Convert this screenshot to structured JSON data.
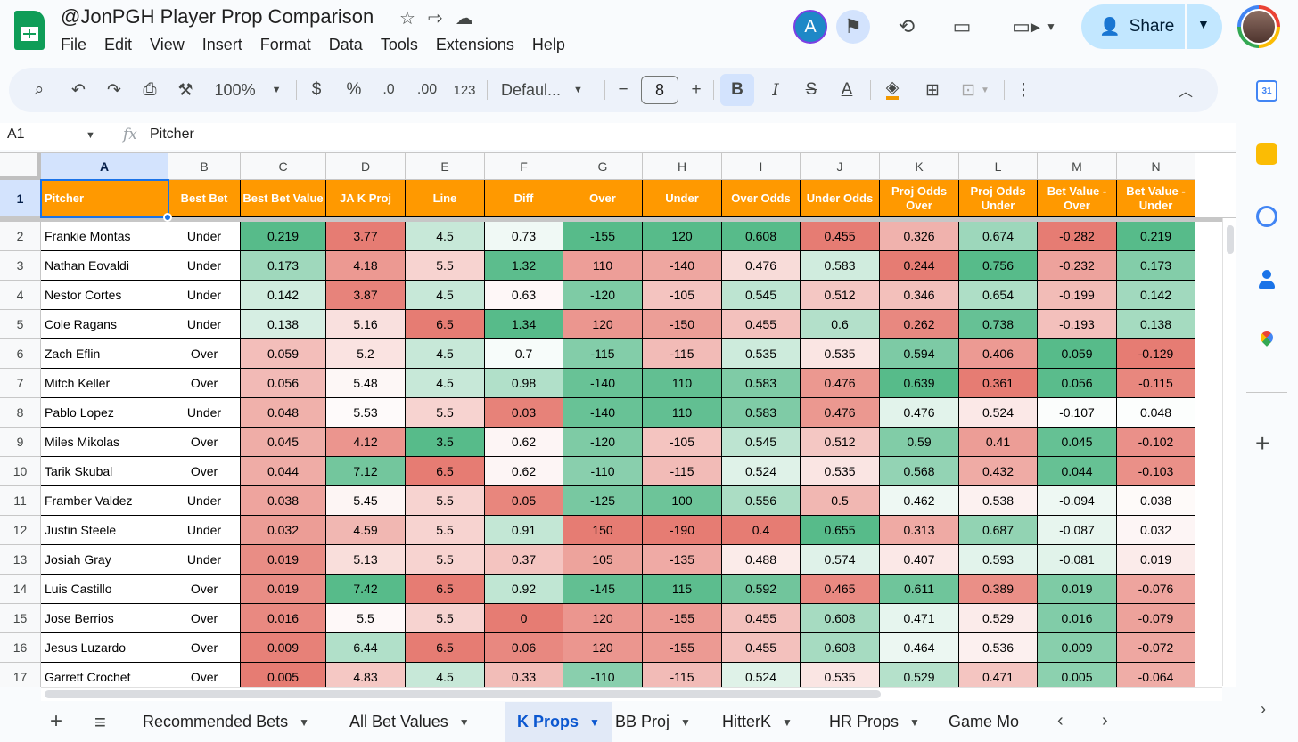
{
  "doc": {
    "title": "@JonPGH Player Prop Comparison"
  },
  "menu": [
    "File",
    "Edit",
    "View",
    "Insert",
    "Format",
    "Data",
    "Tools",
    "Extensions",
    "Help"
  ],
  "header": {
    "avatar_letter": "A",
    "share_label": "Share"
  },
  "toolbar": {
    "zoom": "100%",
    "currency": "$",
    "percent": "%",
    "dec_decrease": ".0",
    "dec_increase": ".00",
    "number_format": "123",
    "font": "Defaul...",
    "font_size": "8",
    "bold": "B",
    "italic": "I",
    "text_color": "A"
  },
  "formula_bar": {
    "cell_ref": "A1",
    "fx": "fx",
    "value": "Pitcher"
  },
  "columns": [
    "A",
    "B",
    "C",
    "D",
    "E",
    "F",
    "G",
    "H",
    "I",
    "J",
    "K",
    "L",
    "M",
    "N"
  ],
  "row_numbers": [
    "1",
    "2",
    "3",
    "4",
    "5",
    "6",
    "7",
    "8",
    "9",
    "10",
    "11",
    "12",
    "13",
    "14",
    "15",
    "16",
    "17"
  ],
  "sheet": {
    "headers": [
      "Pitcher",
      "Best Bet",
      "Best Bet Value",
      "JA K Proj",
      "Line",
      "Diff",
      "Over",
      "Under",
      "Over Odds",
      "Under Odds",
      "Proj Odds Over",
      "Proj Odds Under",
      "Bet Value - Over",
      "Bet Value - Under"
    ],
    "rows": [
      [
        "Frankie Montas",
        "Under",
        "0.219",
        "3.77",
        "4.5",
        "0.73",
        "-155",
        "120",
        "0.608",
        "0.455",
        "0.326",
        "0.674",
        "-0.282",
        "0.219"
      ],
      [
        "Nathan Eovaldi",
        "Under",
        "0.173",
        "4.18",
        "5.5",
        "1.32",
        "110",
        "-140",
        "0.476",
        "0.583",
        "0.244",
        "0.756",
        "-0.232",
        "0.173"
      ],
      [
        "Nestor Cortes",
        "Under",
        "0.142",
        "3.87",
        "4.5",
        "0.63",
        "-120",
        "-105",
        "0.545",
        "0.512",
        "0.346",
        "0.654",
        "-0.199",
        "0.142"
      ],
      [
        "Cole Ragans",
        "Under",
        "0.138",
        "5.16",
        "6.5",
        "1.34",
        "120",
        "-150",
        "0.455",
        "0.6",
        "0.262",
        "0.738",
        "-0.193",
        "0.138"
      ],
      [
        "Zach Eflin",
        "Over",
        "0.059",
        "5.2",
        "4.5",
        "0.7",
        "-115",
        "-115",
        "0.535",
        "0.535",
        "0.594",
        "0.406",
        "0.059",
        "-0.129"
      ],
      [
        "Mitch Keller",
        "Over",
        "0.056",
        "5.48",
        "4.5",
        "0.98",
        "-140",
        "110",
        "0.583",
        "0.476",
        "0.639",
        "0.361",
        "0.056",
        "-0.115"
      ],
      [
        "Pablo Lopez",
        "Under",
        "0.048",
        "5.53",
        "5.5",
        "0.03",
        "-140",
        "110",
        "0.583",
        "0.476",
        "0.476",
        "0.524",
        "-0.107",
        "0.048"
      ],
      [
        "Miles Mikolas",
        "Over",
        "0.045",
        "4.12",
        "3.5",
        "0.62",
        "-120",
        "-105",
        "0.545",
        "0.512",
        "0.59",
        "0.41",
        "0.045",
        "-0.102"
      ],
      [
        "Tarik Skubal",
        "Over",
        "0.044",
        "7.12",
        "6.5",
        "0.62",
        "-110",
        "-115",
        "0.524",
        "0.535",
        "0.568",
        "0.432",
        "0.044",
        "-0.103"
      ],
      [
        "Framber Valdez",
        "Under",
        "0.038",
        "5.45",
        "5.5",
        "0.05",
        "-125",
        "100",
        "0.556",
        "0.5",
        "0.462",
        "0.538",
        "-0.094",
        "0.038"
      ],
      [
        "Justin Steele",
        "Under",
        "0.032",
        "4.59",
        "5.5",
        "0.91",
        "150",
        "-190",
        "0.4",
        "0.655",
        "0.313",
        "0.687",
        "-0.087",
        "0.032"
      ],
      [
        "Josiah Gray",
        "Under",
        "0.019",
        "5.13",
        "5.5",
        "0.37",
        "105",
        "-135",
        "0.488",
        "0.574",
        "0.407",
        "0.593",
        "-0.081",
        "0.019"
      ],
      [
        "Luis Castillo",
        "Over",
        "0.019",
        "7.42",
        "6.5",
        "0.92",
        "-145",
        "115",
        "0.592",
        "0.465",
        "0.611",
        "0.389",
        "0.019",
        "-0.076"
      ],
      [
        "Jose Berrios",
        "Over",
        "0.016",
        "5.5",
        "5.5",
        "0",
        "120",
        "-155",
        "0.455",
        "0.608",
        "0.471",
        "0.529",
        "0.016",
        "-0.079"
      ],
      [
        "Jesus Luzardo",
        "Over",
        "0.009",
        "6.44",
        "6.5",
        "0.06",
        "120",
        "-155",
        "0.455",
        "0.608",
        "0.464",
        "0.536",
        "0.009",
        "-0.072"
      ],
      [
        "Garrett Crochet",
        "Over",
        "0.005",
        "4.83",
        "4.5",
        "0.33",
        "-110",
        "-115",
        "0.524",
        "0.535",
        "0.529",
        "0.471",
        "0.005",
        "-0.064"
      ]
    ],
    "colors": {
      "header_bg": "#ff9900",
      "header_text": "#ffffff",
      "gradient_low": "#e67c73",
      "gradient_mid": "#ffffff",
      "gradient_high": "#57bb8a"
    }
  },
  "tabs": [
    {
      "label": "Recommended Bets",
      "active": false
    },
    {
      "label": "All Bet Values",
      "active": false
    },
    {
      "label": "K Props",
      "active": true
    },
    {
      "label": "BB Proj",
      "active": false
    },
    {
      "label": "HitterK",
      "active": false
    },
    {
      "label": "HR Props",
      "active": false
    },
    {
      "label": "Game Mo",
      "active": false
    }
  ],
  "icons": {
    "star": "star-icon",
    "move": "move-to-folder-icon",
    "cloud": "cloud-status-icon",
    "present": "present-icon",
    "history": "history-icon",
    "comments": "comment-icon",
    "meet": "video-call-icon",
    "share": "share-person-icon"
  },
  "side_panel": {
    "calendar_label": "31"
  }
}
